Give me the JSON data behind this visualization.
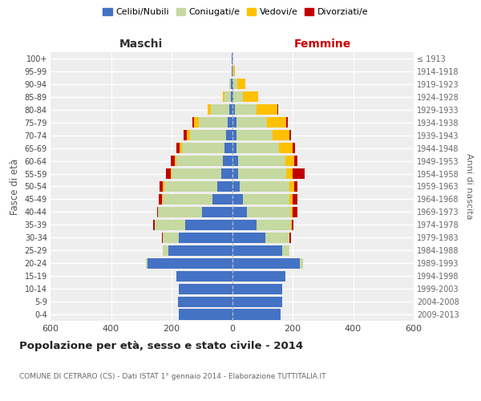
{
  "age_groups": [
    "0-4",
    "5-9",
    "10-14",
    "15-19",
    "20-24",
    "25-29",
    "30-34",
    "35-39",
    "40-44",
    "45-49",
    "50-54",
    "55-59",
    "60-64",
    "65-69",
    "70-74",
    "75-79",
    "80-84",
    "85-89",
    "90-94",
    "95-99",
    "100+"
  ],
  "birth_years": [
    "2009-2013",
    "2004-2008",
    "1999-2003",
    "1994-1998",
    "1989-1993",
    "1984-1988",
    "1979-1983",
    "1974-1978",
    "1969-1973",
    "1964-1968",
    "1959-1963",
    "1954-1958",
    "1949-1953",
    "1944-1948",
    "1939-1943",
    "1934-1938",
    "1929-1933",
    "1924-1928",
    "1919-1923",
    "1914-1918",
    "≤ 1913"
  ],
  "male": {
    "celibi": [
      175,
      180,
      175,
      185,
      280,
      210,
      175,
      155,
      100,
      65,
      50,
      35,
      30,
      25,
      20,
      15,
      10,
      5,
      3,
      2,
      2
    ],
    "coniugati": [
      0,
      0,
      0,
      0,
      5,
      20,
      55,
      100,
      145,
      165,
      175,
      165,
      155,
      140,
      120,
      95,
      60,
      20,
      5,
      0,
      0
    ],
    "vedovi": [
      0,
      0,
      0,
      0,
      0,
      0,
      0,
      0,
      0,
      2,
      3,
      3,
      5,
      8,
      10,
      15,
      10,
      5,
      2,
      0,
      0
    ],
    "divorziati": [
      0,
      0,
      0,
      0,
      0,
      0,
      3,
      5,
      3,
      10,
      13,
      15,
      13,
      12,
      10,
      5,
      2,
      0,
      0,
      0,
      0
    ]
  },
  "female": {
    "nubili": [
      160,
      165,
      165,
      175,
      225,
      165,
      110,
      80,
      50,
      35,
      25,
      20,
      20,
      15,
      15,
      15,
      10,
      5,
      3,
      2,
      2
    ],
    "coniugate": [
      0,
      0,
      0,
      0,
      10,
      25,
      80,
      115,
      145,
      155,
      165,
      160,
      155,
      140,
      120,
      100,
      70,
      30,
      15,
      2,
      0
    ],
    "vedove": [
      0,
      0,
      0,
      0,
      0,
      0,
      0,
      3,
      5,
      10,
      15,
      20,
      30,
      45,
      55,
      65,
      70,
      50,
      25,
      5,
      0
    ],
    "divorziate": [
      0,
      0,
      0,
      0,
      0,
      0,
      5,
      5,
      15,
      15,
      12,
      40,
      10,
      8,
      5,
      5,
      3,
      0,
      0,
      0,
      0
    ]
  },
  "colors": {
    "celibi": "#4472c4",
    "coniugati": "#c5d9a0",
    "vedovi": "#ffc000",
    "divorziati": "#c00000"
  },
  "xlim": 600,
  "title": "Popolazione per età, sesso e stato civile - 2014",
  "subtitle": "COMUNE DI CETRARO (CS) - Dati ISTAT 1° gennaio 2014 - Elaborazione TUTTITALIA.IT",
  "ylabel": "Fasce di età",
  "ylabel_right": "Anni di nascita",
  "legend_labels": [
    "Celibi/Nubili",
    "Coniugati/e",
    "Vedovi/e",
    "Divorziati/e"
  ],
  "bg_color": "#ffffff",
  "plot_bg": "#eeeeee"
}
